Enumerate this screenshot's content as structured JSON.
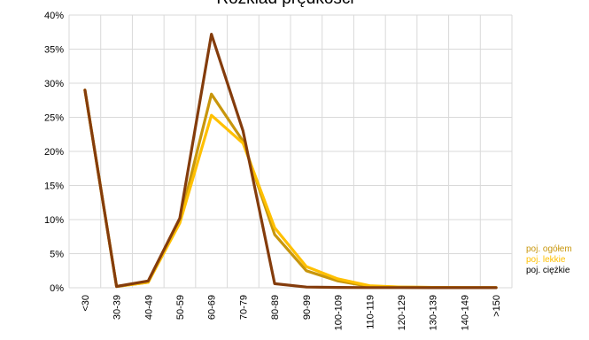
{
  "chart_data": {
    "type": "line",
    "title": "Rozkład prędkości",
    "xlabel": "",
    "ylabel": "",
    "categories": [
      "<30",
      "30-39",
      "40-49",
      "50-59",
      "60-69",
      "70-79",
      "80-89",
      "90-99",
      "100-109",
      "110-119",
      "120-129",
      "130-139",
      "140-149",
      ">150"
    ],
    "ylim": [
      0,
      0.4
    ],
    "yticks": [
      0,
      0.05,
      0.1,
      0.15,
      0.2,
      0.25,
      0.3,
      0.35,
      0.4
    ],
    "ytick_labels": [
      "0%",
      "5%",
      "10%",
      "15%",
      "20%",
      "25%",
      "30%",
      "35%",
      "40%"
    ],
    "grid": true,
    "legend_position": "bottom-right",
    "series": [
      {
        "name": "poj. ogółem",
        "color": "#c8960c",
        "values": [
          0.29,
          0.002,
          0.008,
          0.098,
          0.284,
          0.215,
          0.078,
          0.025,
          0.01,
          0.002,
          0.001,
          0.0005,
          0.0003,
          0.0002
        ]
      },
      {
        "name": "poj. lekkie",
        "color": "#ffc000",
        "values": [
          0.29,
          0.002,
          0.008,
          0.095,
          0.253,
          0.212,
          0.088,
          0.031,
          0.013,
          0.003,
          0.001,
          0.0005,
          0.0003,
          0.0002
        ]
      },
      {
        "name": "poj. ciężkie",
        "color": "#843c0c",
        "values": [
          0.29,
          0.002,
          0.01,
          0.102,
          0.372,
          0.23,
          0.006,
          0.001,
          0.0005,
          0.0003,
          0.0002,
          0.0001,
          0.0001,
          0.0001
        ]
      }
    ]
  }
}
